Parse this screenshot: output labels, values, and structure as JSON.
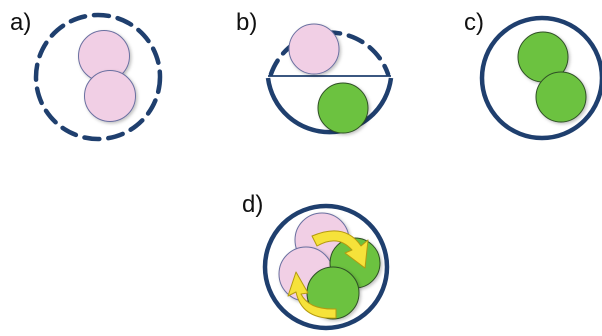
{
  "panels": [
    {
      "label": "a)"
    },
    {
      "label": "b)"
    },
    {
      "label": "c)"
    },
    {
      "label": "d)"
    }
  ],
  "colors": {
    "boundary": "#1f3f6e",
    "pink_fill": "#f1cfe5",
    "pink_stroke": "#6a6fa0",
    "green_fill": "#6cc23f",
    "green_stroke": "#2e4f25",
    "arrow_fill": "#f6e23a",
    "arrow_stroke": "#b49a10"
  },
  "icons": {
    "arrow": "curved-rotation-arrow"
  }
}
